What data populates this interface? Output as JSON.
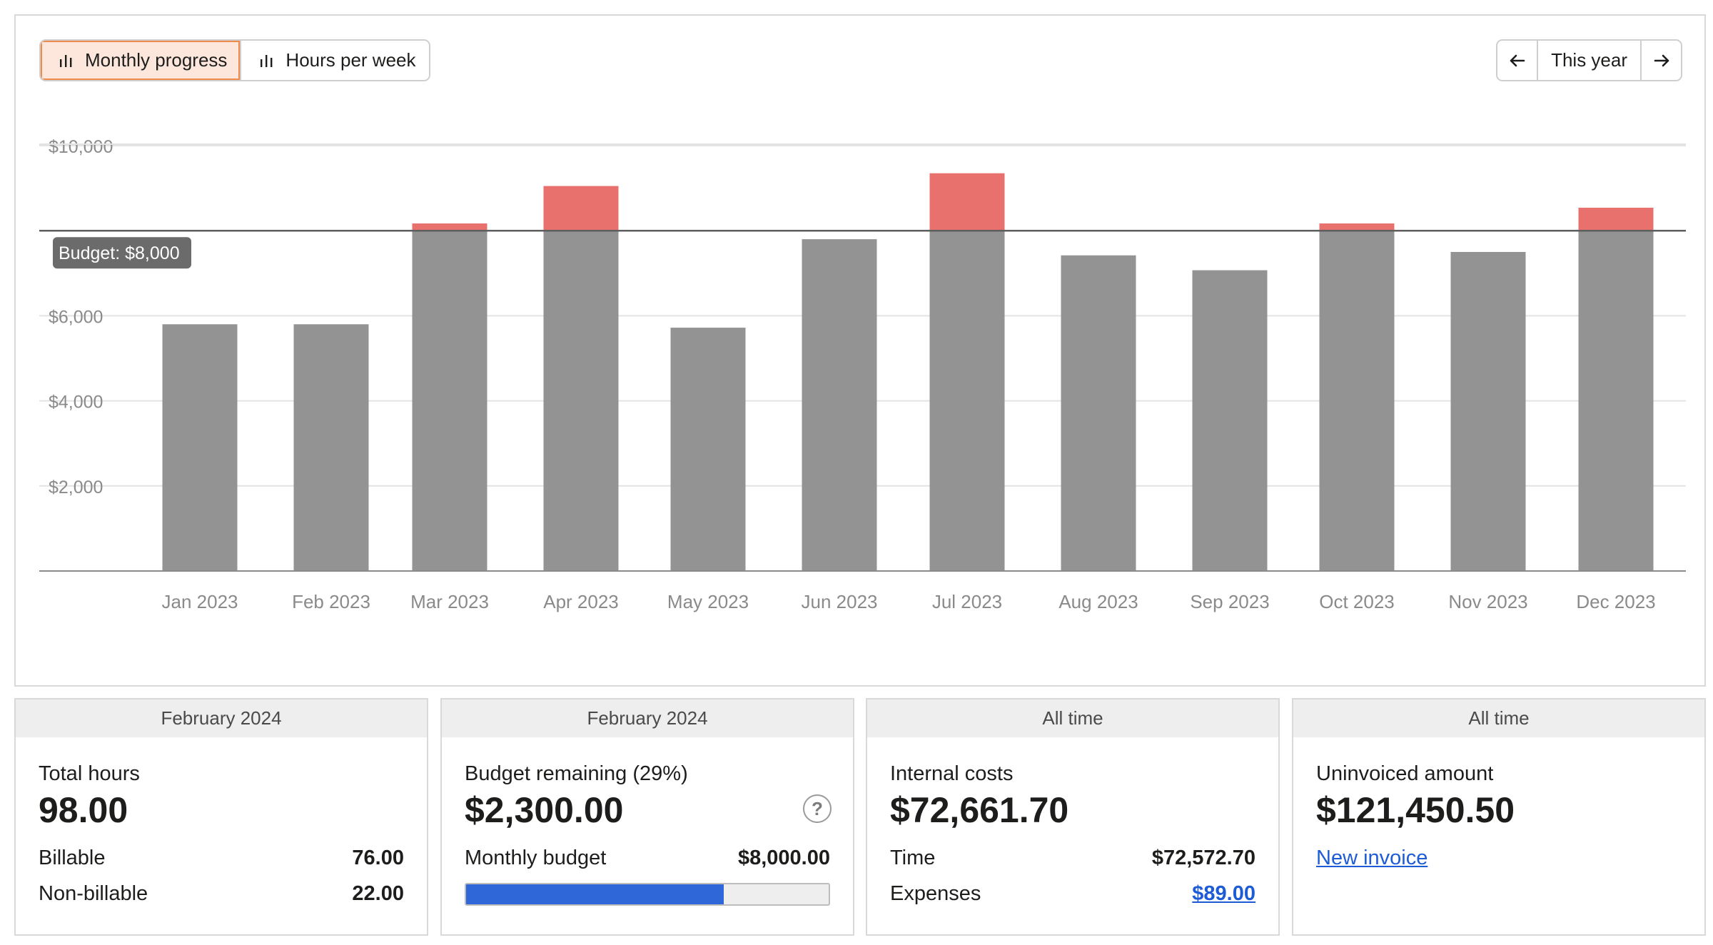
{
  "toolbar": {
    "views": [
      {
        "label": "Monthly progress",
        "icon": "bar-chart-icon",
        "active": true
      },
      {
        "label": "Hours per week",
        "icon": "bar-chart-icon",
        "active": false
      }
    ],
    "period": {
      "label": "This year",
      "prev_icon": "arrow-left-icon",
      "next_icon": "arrow-right-icon"
    }
  },
  "colors": {
    "bar": "#939393",
    "over_budget": "#e8706d",
    "active_accent": "#f08a4b",
    "progress": "#2f66d8",
    "link": "#1e5bd6"
  },
  "chart_data": {
    "type": "bar",
    "categories": [
      "Jan 2023",
      "Feb 2023",
      "Mar 2023",
      "Apr 2023",
      "May 2023",
      "Jun 2023",
      "Jul 2023",
      "Aug 2023",
      "Sep 2023",
      "Oct 2023",
      "Nov 2023",
      "Dec 2023"
    ],
    "values": [
      5800,
      5800,
      8170,
      9050,
      5720,
      7800,
      9350,
      7420,
      7070,
      8170,
      7500,
      8540
    ],
    "budget": 8000,
    "budget_label": "Budget: $8,000",
    "ylim": [
      0,
      10000
    ],
    "yticks": [
      {
        "value": 2000,
        "label": "$2,000"
      },
      {
        "value": 4000,
        "label": "$4,000"
      },
      {
        "value": 6000,
        "label": "$6,000"
      },
      {
        "value": 8000,
        "label": ""
      },
      {
        "value": 10000,
        "label": "$10,000"
      }
    ],
    "grid": true
  },
  "cards": [
    {
      "header": "February 2024",
      "label": "Total hours",
      "value": "98.00",
      "rows": [
        {
          "label": "Billable",
          "value": "76.00"
        },
        {
          "label": "Non-billable",
          "value": "22.00"
        }
      ]
    },
    {
      "header": "February 2024",
      "label": "Budget remaining (29%)",
      "value": "$2,300.00",
      "help": "?",
      "rows": [
        {
          "label": "Monthly budget",
          "value": "$8,000.00"
        }
      ],
      "progress": 0.71
    },
    {
      "header": "All time",
      "label": "Internal costs",
      "value": "$72,661.70",
      "rows": [
        {
          "label": "Time",
          "value": "$72,572.70"
        },
        {
          "label": "Expenses",
          "value": "$89.00"
        }
      ]
    },
    {
      "header": "All time",
      "label": "Uninvoiced amount",
      "value": "$121,450.50",
      "link": "New invoice"
    }
  ]
}
